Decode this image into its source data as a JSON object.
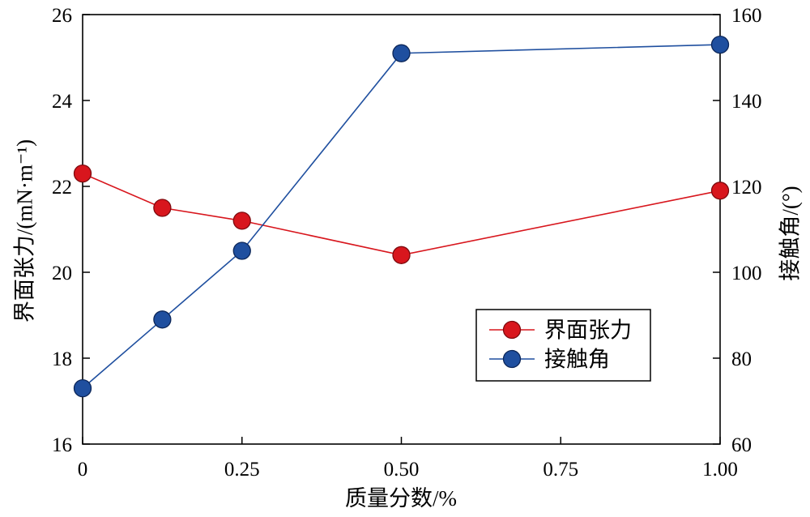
{
  "chart_data": {
    "type": "line",
    "x": [
      0,
      0.125,
      0.25,
      0.5,
      1.0
    ],
    "xlabel": "质量分数/%",
    "ylabel": "界面张力/(mN·m⁻¹)",
    "y2label": "接触角/(°)",
    "xlim": [
      0,
      1.0
    ],
    "ylim": [
      16,
      26
    ],
    "y2lim": [
      60,
      160
    ],
    "xticks": [
      0,
      0.25,
      0.5,
      0.75,
      1.0
    ],
    "xtick_labels": [
      "0",
      "0.25",
      "0.50",
      "0.75",
      "1.00"
    ],
    "yticks": [
      16,
      18,
      20,
      22,
      24,
      26
    ],
    "y2ticks": [
      60,
      80,
      100,
      120,
      140,
      160
    ],
    "grid": false,
    "legend": "lower-right",
    "series": [
      {
        "name": "界面张力",
        "axis": "left",
        "color": "#d8161d",
        "edge": "#7d0a0e",
        "values": [
          22.3,
          21.5,
          21.2,
          20.4,
          21.9
        ]
      },
      {
        "name": "接触角",
        "axis": "right",
        "color": "#1f4f9f",
        "edge": "#0c2658",
        "values": [
          73,
          89,
          105,
          151,
          153
        ]
      }
    ]
  }
}
